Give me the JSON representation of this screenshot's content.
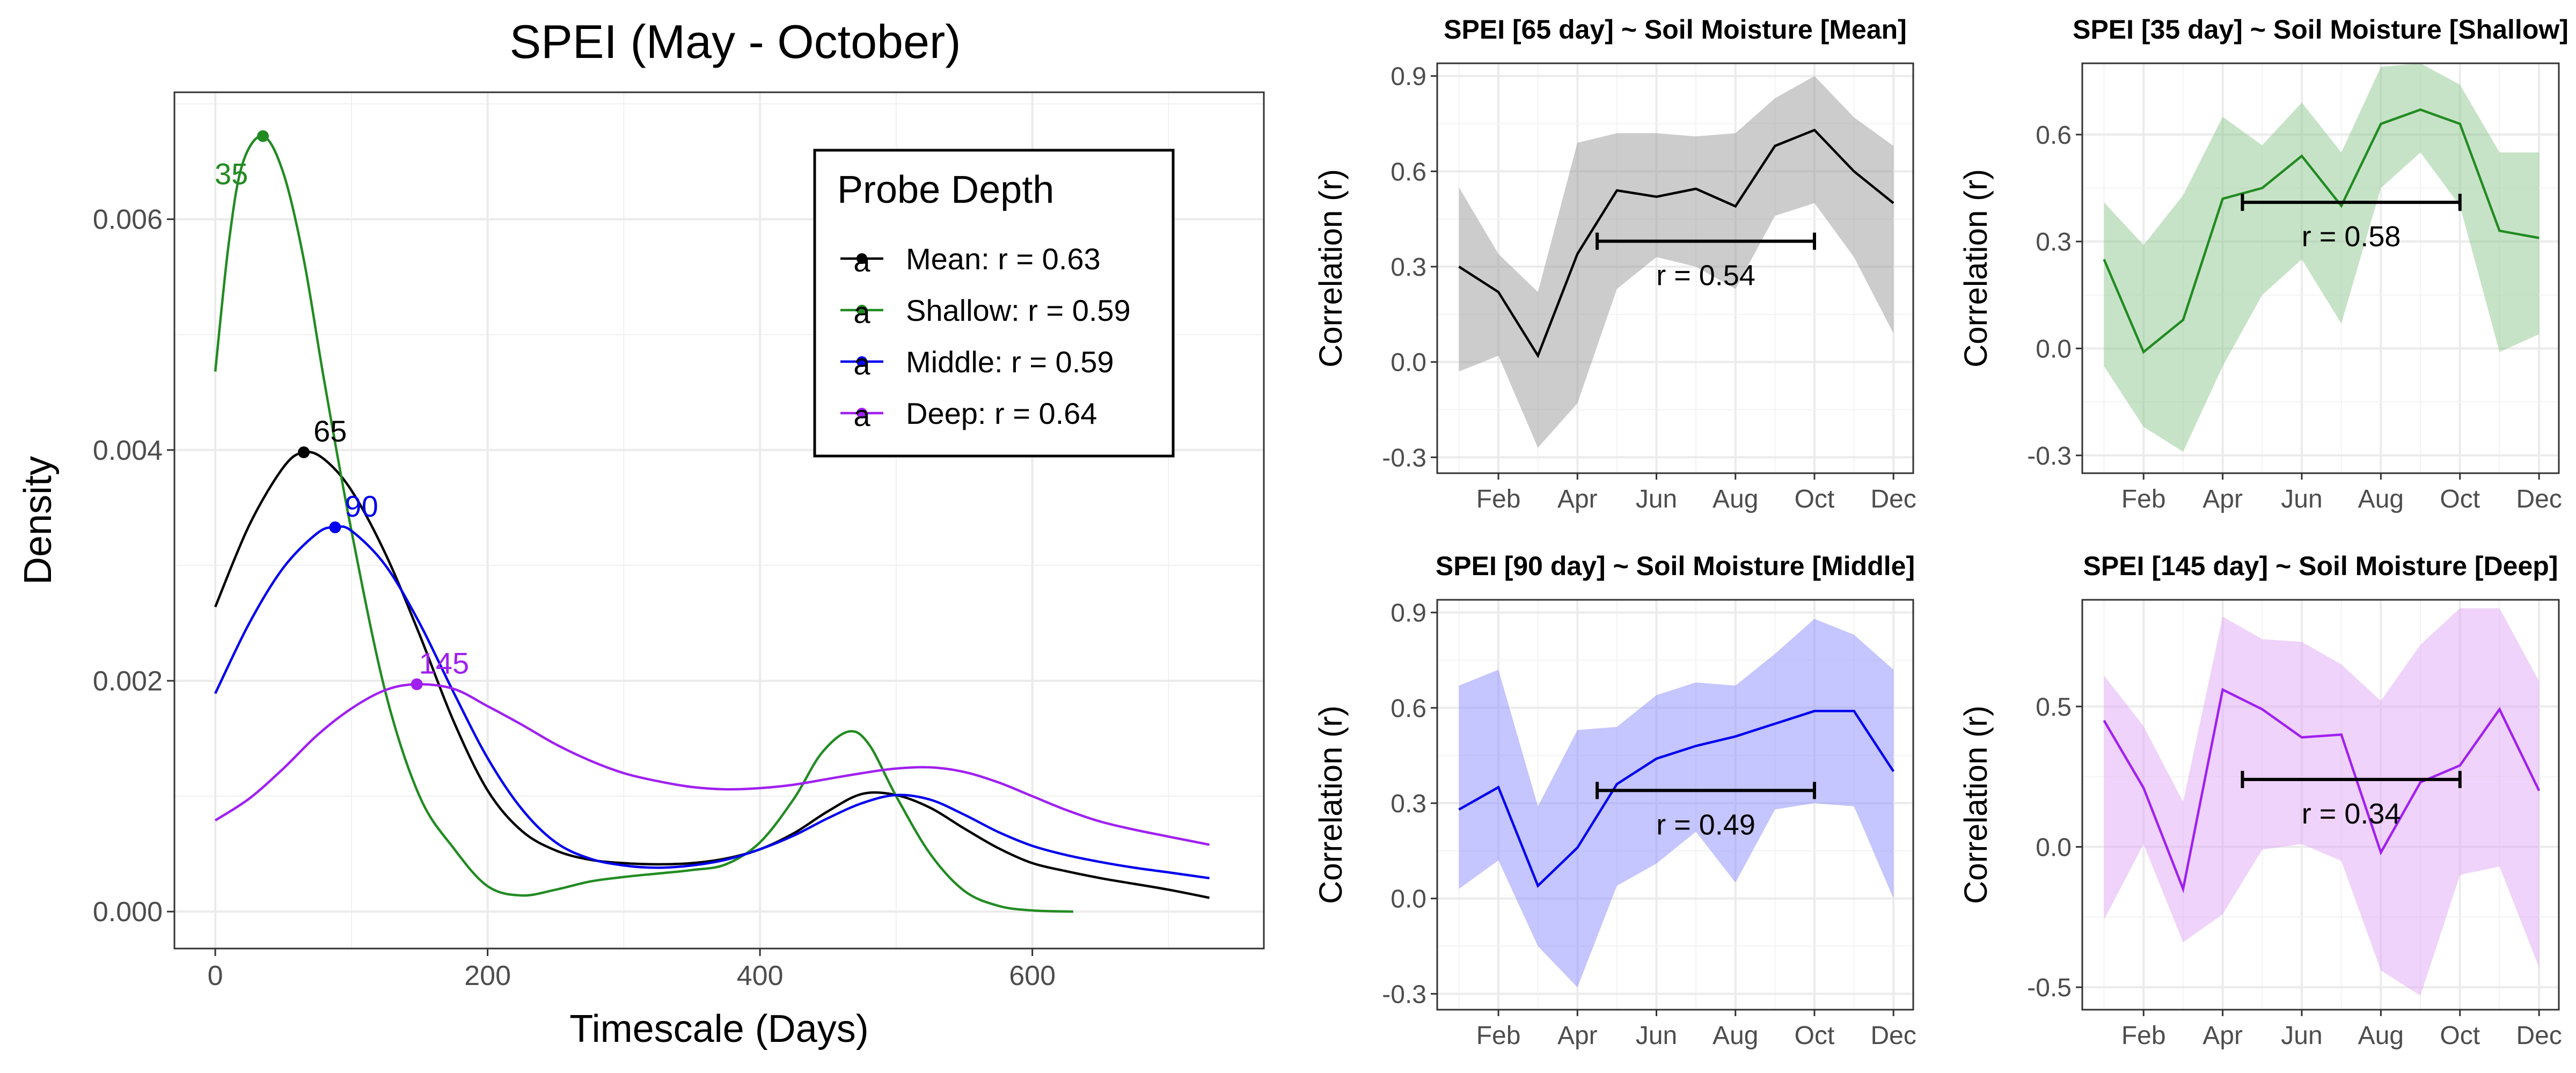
{
  "chart_data": [
    {
      "type": "line",
      "title": "SPEI (May - October)",
      "xlabel": "Timescale (Days)",
      "ylabel": "Density",
      "xlim": [
        -30,
        770
      ],
      "ylim": [
        -0.00032,
        0.0071
      ],
      "xticks": [
        0,
        200,
        400,
        600
      ],
      "yticks": [
        0,
        0.002,
        0.004,
        0.006
      ],
      "ytick_labels": [
        "0.000",
        "0.002",
        "0.004",
        "0.006"
      ],
      "grid": true,
      "legend": {
        "title": "Probe Depth",
        "placement": "top-right",
        "glyph": "a",
        "entries": [
          "Mean: r = 0.63",
          "Shallow: r = 0.59",
          "Middle: r = 0.59",
          "Deep: r = 0.64"
        ]
      },
      "series": [
        {
          "name": "Mean",
          "color": "#000000",
          "peak": {
            "x": 65,
            "y": 0.00398,
            "label": "65"
          },
          "x": [
            0,
            25,
            50,
            65,
            80,
            100,
            125,
            150,
            175,
            200,
            225,
            250,
            275,
            300,
            325,
            350,
            375,
            400,
            425,
            450,
            475,
            500,
            525,
            550,
            575,
            600,
            625,
            650,
            675,
            700,
            730
          ],
          "y": [
            0.00264,
            0.00335,
            0.00385,
            0.00398,
            0.00392,
            0.00365,
            0.0031,
            0.0024,
            0.00165,
            0.00105,
            0.0007,
            0.00053,
            0.00045,
            0.00042,
            0.00041,
            0.00042,
            0.00046,
            0.00054,
            0.00068,
            0.00087,
            0.00102,
            0.00101,
            0.0009,
            0.00072,
            0.00055,
            0.00042,
            0.00035,
            0.00029,
            0.00024,
            0.00019,
            0.00012
          ]
        },
        {
          "name": "Shallow",
          "color": "#228b22",
          "peak": {
            "x": 35,
            "y": 0.00672,
            "label": "35"
          },
          "x": [
            0,
            10,
            20,
            35,
            50,
            65,
            80,
            100,
            125,
            150,
            175,
            200,
            225,
            250,
            275,
            300,
            325,
            350,
            375,
            400,
            425,
            445,
            465,
            480,
            500,
            525,
            550,
            575,
            600,
            630
          ],
          "y": [
            0.00468,
            0.0058,
            0.00648,
            0.00672,
            0.0064,
            0.00565,
            0.0046,
            0.0033,
            0.0019,
            0.001,
            0.00055,
            0.00022,
            0.00014,
            0.00019,
            0.00026,
            0.0003,
            0.00033,
            0.00036,
            0.00041,
            0.0006,
            0.00098,
            0.00137,
            0.00156,
            0.00145,
            0.001,
            0.0005,
            0.00018,
            5e-05,
            1e-05,
            0.0
          ]
        },
        {
          "name": "Middle",
          "color": "#0000ee",
          "peak": {
            "x": 88,
            "y": 0.00333,
            "label": "90"
          },
          "x": [
            0,
            25,
            50,
            75,
            88,
            100,
            125,
            150,
            175,
            200,
            225,
            250,
            275,
            300,
            325,
            350,
            375,
            400,
            425,
            450,
            475,
            500,
            525,
            550,
            575,
            600,
            625,
            650,
            675,
            700,
            730
          ],
          "y": [
            0.00189,
            0.0025,
            0.00298,
            0.00328,
            0.00333,
            0.0033,
            0.003,
            0.0025,
            0.0019,
            0.00133,
            0.00089,
            0.0006,
            0.00046,
            0.0004,
            0.00038,
            0.0004,
            0.00045,
            0.00054,
            0.00066,
            0.00081,
            0.00094,
            0.00101,
            0.00097,
            0.00084,
            0.00069,
            0.00057,
            0.00049,
            0.00043,
            0.00038,
            0.00034,
            0.00029
          ]
        },
        {
          "name": "Deep",
          "color": "#a020f0",
          "peak": {
            "x": 148,
            "y": 0.00197,
            "label": "145"
          },
          "x": [
            0,
            25,
            50,
            75,
            100,
            125,
            148,
            175,
            200,
            225,
            250,
            275,
            300,
            325,
            350,
            375,
            400,
            425,
            450,
            475,
            500,
            525,
            550,
            575,
            600,
            625,
            650,
            675,
            700,
            730
          ],
          "y": [
            0.00079,
            0.00098,
            0.00124,
            0.00153,
            0.00176,
            0.00192,
            0.00197,
            0.00193,
            0.00178,
            0.00162,
            0.00145,
            0.00131,
            0.0012,
            0.00113,
            0.00108,
            0.00106,
            0.00107,
            0.0011,
            0.00115,
            0.0012,
            0.00124,
            0.00125,
            0.00121,
            0.00112,
            0.001,
            0.00088,
            0.00078,
            0.00071,
            0.00065,
            0.00058
          ]
        }
      ]
    },
    {
      "type": "area",
      "title": "SPEI [65 day] ~ Soil Moisture [Mean]",
      "ylabel": "Correlation (r)",
      "color": "#000000",
      "fill": "#999999",
      "ylim": [
        -0.35,
        0.94
      ],
      "yticks": [
        -0.3,
        0.0,
        0.3,
        0.6,
        0.9
      ],
      "ytick_labels": [
        "-0.3",
        "0.0",
        "0.3",
        "0.6",
        "0.9"
      ],
      "xticks": [
        "Feb",
        "Apr",
        "Jun",
        "Aug",
        "Oct",
        "Dec"
      ],
      "x": [
        1,
        2,
        3,
        4,
        5,
        6,
        7,
        8,
        9,
        10,
        11,
        12
      ],
      "r": [
        0.3,
        0.22,
        0.02,
        0.34,
        0.54,
        0.52,
        0.545,
        0.49,
        0.68,
        0.73,
        0.6,
        0.5
      ],
      "lower": [
        -0.03,
        0.02,
        -0.27,
        -0.13,
        0.23,
        0.33,
        0.3,
        0.23,
        0.46,
        0.5,
        0.33,
        0.09
      ],
      "upper": [
        0.55,
        0.34,
        0.22,
        0.69,
        0.72,
        0.72,
        0.71,
        0.72,
        0.83,
        0.9,
        0.77,
        0.68
      ],
      "bracket": {
        "x1": 4.5,
        "x2": 10,
        "y": 0.38
      },
      "label": "r = 0.54"
    },
    {
      "type": "area",
      "title": "SPEI [35 day] ~ Soil Moisture [Shallow]",
      "ylabel": "Correlation (r)",
      "color": "#228b22",
      "fill": "#90c890",
      "ylim": [
        -0.35,
        0.8
      ],
      "yticks": [
        -0.3,
        0.0,
        0.3,
        0.6
      ],
      "ytick_labels": [
        "-0.3",
        "0.0",
        "0.3",
        "0.6"
      ],
      "xticks": [
        "Feb",
        "Apr",
        "Jun",
        "Aug",
        "Oct",
        "Dec"
      ],
      "x": [
        1,
        2,
        3,
        4,
        5,
        6,
        7,
        8,
        9,
        10,
        11,
        12
      ],
      "r": [
        0.25,
        -0.01,
        0.08,
        0.42,
        0.45,
        0.54,
        0.4,
        0.63,
        0.67,
        0.63,
        0.33,
        0.31
      ],
      "lower": [
        -0.05,
        -0.22,
        -0.29,
        -0.05,
        0.15,
        0.25,
        0.07,
        0.45,
        0.55,
        0.4,
        -0.01,
        0.04
      ],
      "upper": [
        0.41,
        0.29,
        0.43,
        0.65,
        0.57,
        0.69,
        0.55,
        0.79,
        0.8,
        0.74,
        0.55,
        0.55
      ],
      "bracket": {
        "x1": 4.5,
        "x2": 10,
        "y": 0.41
      },
      "label": "r = 0.58"
    },
    {
      "type": "area",
      "title": "SPEI [90 day] ~ Soil Moisture [Middle]",
      "ylabel": "Correlation (r)",
      "color": "#0000ee",
      "fill": "#8c8cff",
      "ylim": [
        -0.35,
        0.94
      ],
      "yticks": [
        -0.3,
        0.0,
        0.3,
        0.6,
        0.9
      ],
      "ytick_labels": [
        "-0.3",
        "0.0",
        "0.3",
        "0.6",
        "0.9"
      ],
      "xticks": [
        "Feb",
        "Apr",
        "Jun",
        "Aug",
        "Oct",
        "Dec"
      ],
      "x": [
        1,
        2,
        3,
        4,
        5,
        6,
        7,
        8,
        9,
        10,
        11,
        12
      ],
      "r": [
        0.28,
        0.35,
        0.04,
        0.16,
        0.36,
        0.44,
        0.48,
        0.51,
        0.55,
        0.59,
        0.59,
        0.4
      ],
      "lower": [
        0.03,
        0.12,
        -0.15,
        -0.28,
        0.04,
        0.11,
        0.21,
        0.05,
        0.28,
        0.3,
        0.29,
        0.0
      ],
      "upper": [
        0.67,
        0.72,
        0.29,
        0.53,
        0.54,
        0.64,
        0.68,
        0.67,
        0.77,
        0.88,
        0.83,
        0.72
      ],
      "bracket": {
        "x1": 4.5,
        "x2": 10,
        "y": 0.34
      },
      "label": "r = 0.49"
    },
    {
      "type": "area",
      "title": "SPEI [145 day] ~ Soil Moisture [Deep]",
      "ylabel": "Correlation (r)",
      "color": "#a020f0",
      "fill": "#dfa8f5",
      "ylim": [
        -0.58,
        0.88
      ],
      "yticks": [
        -0.5,
        0.0,
        0.5
      ],
      "ytick_labels": [
        "-0.5",
        "0.0",
        "0.5"
      ],
      "xticks": [
        "Feb",
        "Apr",
        "Jun",
        "Aug",
        "Oct",
        "Dec"
      ],
      "x": [
        1,
        2,
        3,
        4,
        5,
        6,
        7,
        8,
        9,
        10,
        11,
        12
      ],
      "r": [
        0.45,
        0.21,
        -0.15,
        0.56,
        0.49,
        0.39,
        0.4,
        -0.02,
        0.23,
        0.29,
        0.49,
        0.2
      ],
      "lower": [
        -0.26,
        0.01,
        -0.34,
        -0.24,
        -0.01,
        0.01,
        -0.05,
        -0.44,
        -0.53,
        -0.1,
        -0.07,
        -0.43
      ],
      "upper": [
        0.61,
        0.43,
        0.16,
        0.82,
        0.74,
        0.73,
        0.65,
        0.52,
        0.72,
        0.85,
        0.85,
        0.59
      ],
      "bracket": {
        "x1": 4.5,
        "x2": 10,
        "y": 0.24
      },
      "label": "r = 0.34"
    }
  ]
}
